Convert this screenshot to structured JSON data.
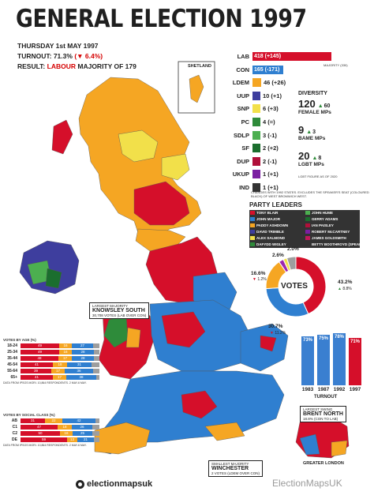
{
  "title": "GENERAL ELECTION 1997",
  "date_line": "THURSDAY 1st MAY 1997",
  "turnout_line": {
    "label": "TURNOUT:",
    "value": "71.3%",
    "change": "(▼ 6.4%)"
  },
  "result_line": {
    "label": "RESULT:",
    "party": "LABOUR",
    "rest": "MAJORITY OF 179"
  },
  "shetland_label": "SHETLAND",
  "majority_note": "MAJORITY (330)",
  "parties": [
    {
      "code": "LAB",
      "value": "418 (+145)",
      "seats": 418,
      "color": "#d50f2a"
    },
    {
      "code": "CON",
      "value": "165 (-171)",
      "seats": 165,
      "color": "#2f7fd0"
    },
    {
      "code": "LDEM",
      "value": "46 (+26)",
      "seats": 46,
      "color": "#f5a623"
    },
    {
      "code": "UUP",
      "value": "10 (+1)",
      "seats": 10,
      "color": "#3e3e9e"
    },
    {
      "code": "SNP",
      "value": "6 (+3)",
      "seats": 6,
      "color": "#f2e04a"
    },
    {
      "code": "PC",
      "value": "4 (=)",
      "seats": 4,
      "color": "#2e8b3a"
    },
    {
      "code": "SDLP",
      "value": "3 (-1)",
      "seats": 3,
      "color": "#4caf50"
    },
    {
      "code": "SF",
      "value": "2 (+2)",
      "seats": 2,
      "color": "#1b6e2e"
    },
    {
      "code": "DUP",
      "value": "2 (-1)",
      "seats": 2,
      "color": "#b0103a"
    },
    {
      "code": "UKUP",
      "value": "1 (+1)",
      "seats": 1,
      "color": "#7b1fa2"
    },
    {
      "code": "IND",
      "value": "1 (+1)",
      "seats": 1,
      "color": "#333333"
    }
  ],
  "parties_note": "CHANGES WITH 1992 STATES. EXCLUDES THE SPEAKER'S SEAT (COLOURED BLACK) OF WEST BROMWICH WEST.",
  "diversity": {
    "title": "DIVERSITY",
    "items": [
      {
        "value": "120",
        "change": "60",
        "label": "FEMALE MPs"
      },
      {
        "value": "9",
        "change": "3",
        "label": "BAME MPs"
      },
      {
        "value": "20",
        "change": "8",
        "label": "LGBT MPs"
      }
    ],
    "note": "LGBT FIGURE AS OF 2020"
  },
  "leaders": {
    "title": "PARTY LEADERS",
    "items": [
      {
        "name": "TONY BLAIR",
        "color": "#d50f2a"
      },
      {
        "name": "JOHN HUME",
        "color": "#4caf50"
      },
      {
        "name": "JOHN MAJOR",
        "color": "#2f7fd0"
      },
      {
        "name": "GERRY ADAMS",
        "color": "#1b6e2e"
      },
      {
        "name": "PADDY ASHDOWN",
        "color": "#f5a623"
      },
      {
        "name": "IAN PAISLEY",
        "color": "#b0103a"
      },
      {
        "name": "DAVID TRIMBLE",
        "color": "#3e3e9e"
      },
      {
        "name": "ROBERT McCARTNEY",
        "color": "#7b1fa2"
      },
      {
        "name": "ALEX SALMOND",
        "color": "#f2e04a"
      },
      {
        "name": "JAMES GOLDSMITH",
        "color": "#c2185b"
      },
      {
        "name": "DAFYDD WIGLEY",
        "color": "#2e8b3a"
      },
      {
        "name": "BETTY BOOTHROYD (SPEAKER)",
        "color": "#333333"
      }
    ]
  },
  "votes": {
    "label": "VOTES",
    "slices": [
      {
        "party": "LAB",
        "pct": 43.2,
        "label": "43.2%",
        "change": "8.8%",
        "color": "#d50f2a"
      },
      {
        "party": "CON",
        "pct": 30.7,
        "label": "30.7%",
        "change": "11.2%",
        "color": "#2f7fd0"
      },
      {
        "party": "LDEM",
        "pct": 16.6,
        "label": "16.6%",
        "change": "1.2%",
        "color": "#f5a623"
      },
      {
        "party": "REF",
        "pct": 2.6,
        "label": "2.6%",
        "change": "",
        "color": "#9c27b0"
      },
      {
        "party": "SNP",
        "pct": 2.0,
        "label": "2.0%",
        "change": "",
        "color": "#f2e04a"
      },
      {
        "party": "OTH",
        "pct": 4.9,
        "label": "",
        "change": "",
        "color": "#9e9e9e"
      }
    ]
  },
  "turnout": {
    "label": "TURNOUT",
    "bars": [
      {
        "year": "1983",
        "pct": 73,
        "label": "73%"
      },
      {
        "year": "1987",
        "pct": 75,
        "label": "75%"
      },
      {
        "year": "1992",
        "pct": 78,
        "label": "78%"
      },
      {
        "year": "1997",
        "pct": 71,
        "label": "71%"
      }
    ]
  },
  "age_chart": {
    "title": "VOTES BY AGE (%)",
    "note": "DATA FROM IPSOS MORI. 10,864 RESPONDENTS. 2 MAY-6 MAY.",
    "rows": [
      {
        "label": "18-24",
        "lab": 49,
        "ldem": 16,
        "con": 27
      },
      {
        "label": "25-34",
        "lab": 49,
        "ldem": 16,
        "con": 28
      },
      {
        "label": "35-44",
        "lab": 48,
        "ldem": 17,
        "con": 28
      },
      {
        "label": "45-54",
        "lab": 41,
        "ldem": 18,
        "con": 31
      },
      {
        "label": "55-64",
        "lab": 39,
        "ldem": 17,
        "con": 36
      },
      {
        "label": "65+",
        "lab": 41,
        "ldem": 17,
        "con": 38
      }
    ]
  },
  "class_chart": {
    "title": "VOTES BY SOCIAL CLASS (%)",
    "note": "DATA FROM IPSOS MORI. 10,864 RESPONDENTS. 2 MAY-6 MAY.",
    "rows": [
      {
        "label": "AB",
        "lab": 31,
        "ldem": 22,
        "con": 42
      },
      {
        "label": "C1",
        "lab": 47,
        "ldem": 18,
        "con": 26
      },
      {
        "label": "C2",
        "lab": 50,
        "ldem": 16,
        "con": 25
      },
      {
        "label": "DE",
        "lab": 59,
        "ldem": 13,
        "con": 21
      }
    ]
  },
  "callouts": {
    "knowsley": {
      "small": "LARGEST MAJORITY",
      "name": "KNOWSLEY SOUTH",
      "detail": "30,708 VOTES (LAB OVER CON)"
    },
    "brent": {
      "small": "LARGEST SWING",
      "name": "BRENT NORTH",
      "detail": "18.8% (CON TO LAB)"
    },
    "winchester": {
      "small": "SMALLEST MAJORITY",
      "name": "WINCHESTER",
      "detail": "2 VOTES (LDEM OVER CON)"
    }
  },
  "greater_london_label": "GREATER LONDON",
  "brand": "electionmapsuk",
  "watermark": "ElectionMapsUK"
}
